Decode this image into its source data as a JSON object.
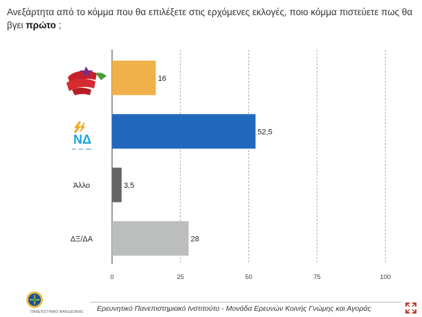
{
  "question": {
    "text_before": "Ανεξάρτητα από το κόμμα που θα επιλέξετε στις ερχόμενες εκλογές, ποιο κόμμα πιστεύετε πως θα βγει",
    "emphasis": "πρώτο",
    "text_after": " ;"
  },
  "chart_data": {
    "type": "bar",
    "orientation": "horizontal",
    "title": "Ανεξάρτητα από το κόμμα που θα επιλέξετε στις ερχόμενες εκλογές, ποιο κόμμα πιστεύετε πως θα βγει πρώτο ;",
    "categories": [
      "ΣΥΡΙΖΑ",
      "ΝΔ",
      "Άλλο",
      "ΔΞ/ΔΑ"
    ],
    "category_display": [
      {
        "type": "logo",
        "name": "syriza-logo"
      },
      {
        "type": "logo",
        "name": "nd-logo",
        "text": "ΝΔ"
      },
      {
        "type": "text",
        "text": "Άλλο"
      },
      {
        "type": "text",
        "text": "ΔΞ/ΔΑ"
      }
    ],
    "values": [
      16,
      52.5,
      3.5,
      28
    ],
    "value_labels": [
      "16",
      "52,5",
      "3,5",
      "28"
    ],
    "colors": [
      "#F0B14A",
      "#2269BE",
      "#666666",
      "#BCBEBE"
    ],
    "xlim": [
      0,
      100
    ],
    "xticks": [
      0,
      25,
      50,
      75,
      100
    ],
    "xtick_labels": [
      "0",
      "25",
      "50",
      "75",
      "100"
    ],
    "grid": true
  },
  "footer": {
    "text": "Ερευνητικό Πανεπιστημιακό Ινστιτούτο - Μονάδα Ερευνών Κοινής Γνώμης και Αγοράς",
    "logo_label": "ΠΑΝΕΠΙΣΤΗΜΙΟ ΜΑΚΕΔΟΝΙΑΣ"
  }
}
